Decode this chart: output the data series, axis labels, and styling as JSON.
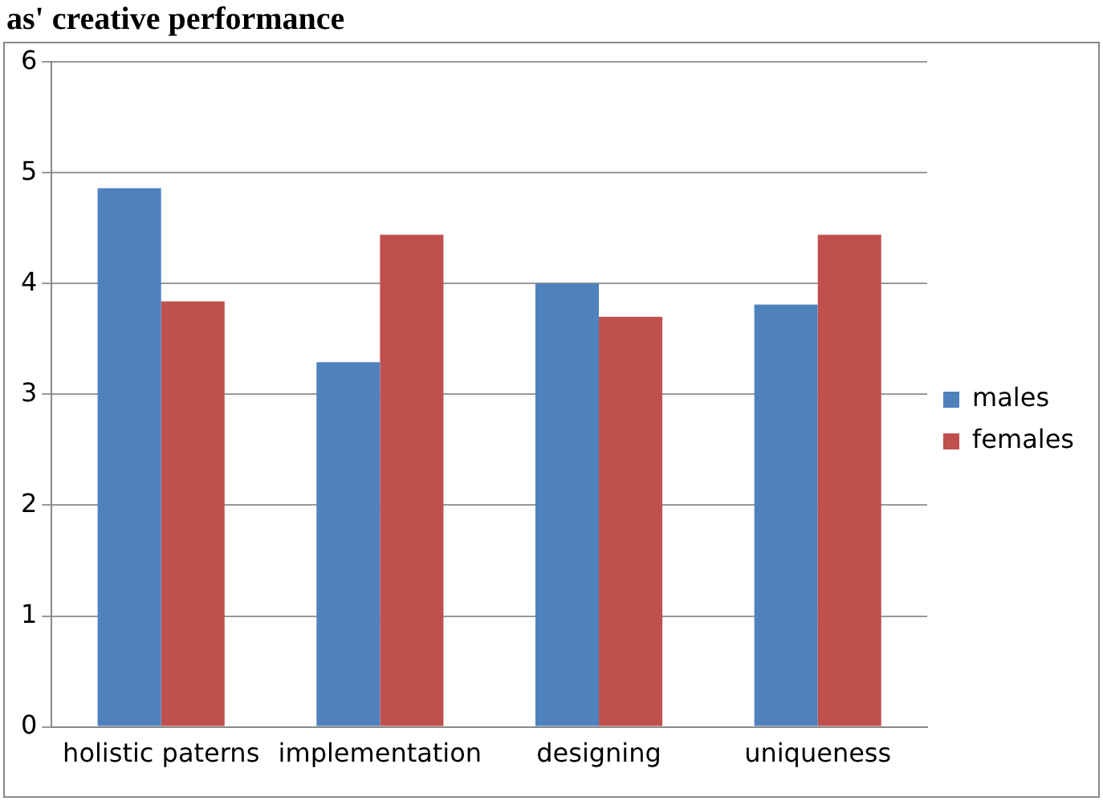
{
  "chart_data": {
    "type": "bar",
    "title": "as' creative performance",
    "categories": [
      "holistic paterns",
      "implementation",
      "designing",
      "uniqueness"
    ],
    "series": [
      {
        "name": "males",
        "color": "#4f81bd",
        "values": [
          4.86,
          3.29,
          4.0,
          3.81
        ]
      },
      {
        "name": "females",
        "color": "#c0504d",
        "values": [
          3.84,
          4.44,
          3.7,
          4.44
        ]
      }
    ],
    "ylim": [
      0,
      6
    ],
    "yticks": [
      0,
      1,
      2,
      3,
      4,
      5,
      6
    ],
    "grid": "y",
    "legend": "right"
  }
}
